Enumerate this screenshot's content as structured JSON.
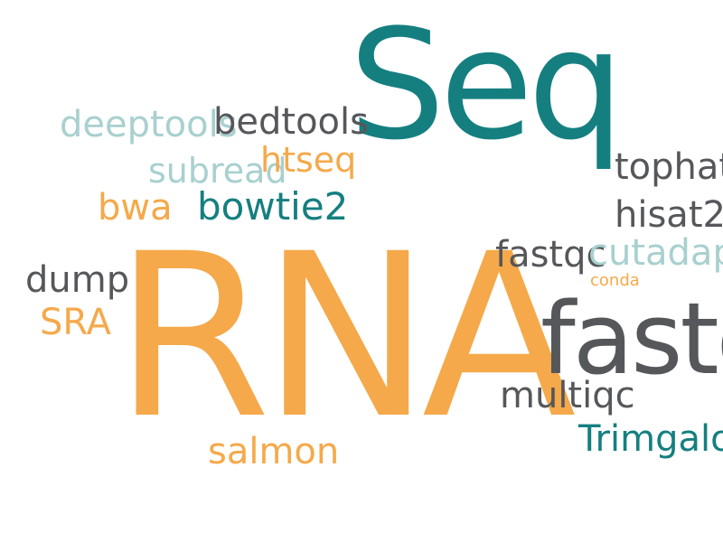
{
  "words": {
    "seq": "Seq",
    "rna": "RNA",
    "fastq": "fastq",
    "deeptools": "deeptools",
    "bedtools": "bedtools",
    "subread": "subread",
    "htseq": "htseq",
    "bwa": "bwa",
    "bowtie2": "bowtie2",
    "tophat": "tophat",
    "hisat2": "hisat2",
    "fastqc": "fastqc",
    "cutadapt": "cutadapt",
    "conda": "conda",
    "dump": "dump",
    "sra": "SRA",
    "multiqc": "multiqc",
    "trimgalore": "Trimgalore",
    "salmon": "salmon"
  },
  "colors": {
    "teal": "#157f80",
    "orange": "#f5a94a",
    "gray": "#55575a",
    "light_teal": "#a8d0cf",
    "background": "#ffffff"
  }
}
